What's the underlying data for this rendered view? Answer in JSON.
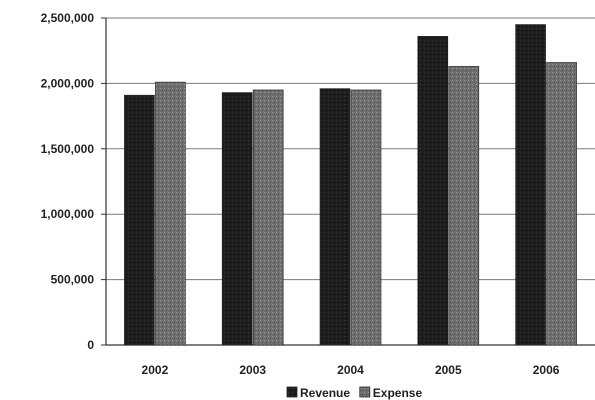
{
  "chart_data": {
    "type": "bar",
    "categories": [
      "2002",
      "2003",
      "2004",
      "2005",
      "2006"
    ],
    "series": [
      {
        "name": "Revenue",
        "values": [
          1910000,
          1930000,
          1960000,
          2360000,
          2450000
        ],
        "color": "#1e1e1e"
      },
      {
        "name": "Expense",
        "values": [
          2010000,
          1950000,
          1950000,
          2130000,
          2160000
        ],
        "color": "#6e6e6e"
      }
    ],
    "ylim": [
      0,
      2500000
    ],
    "yticks": [
      "0",
      "500,000",
      "1,000,000",
      "1,500,000",
      "2,000,000",
      "2,500,000"
    ],
    "ytick_values": [
      0,
      500000,
      1000000,
      1500000,
      2000000,
      2500000
    ],
    "grid": true,
    "legend": "bottom"
  }
}
